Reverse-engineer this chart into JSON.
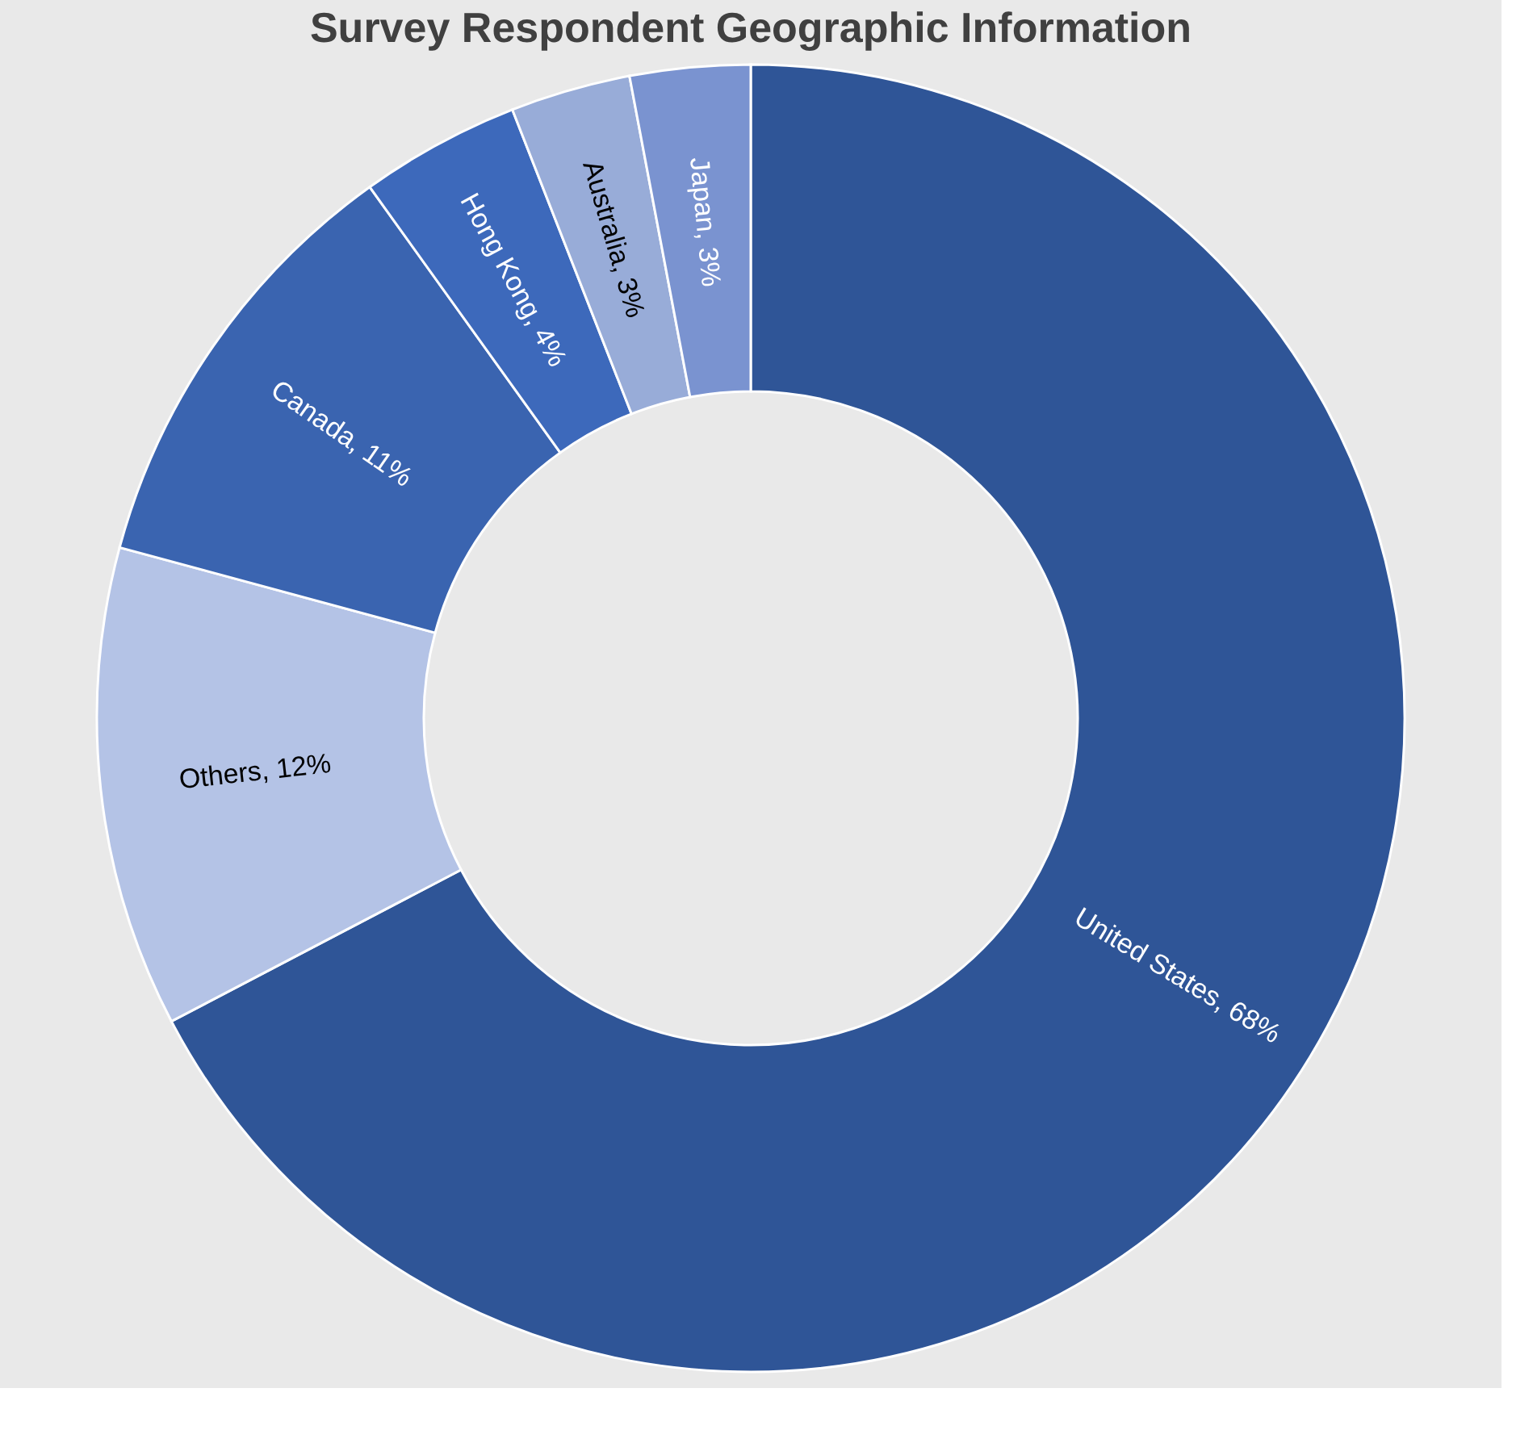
{
  "chart_data": {
    "type": "donut",
    "title": "Survey Respondent Geographic Information",
    "categories": [
      "United States",
      "Others",
      "Canada",
      "Hong Kong",
      "Australia",
      "Japan"
    ],
    "values": [
      68,
      12,
      11,
      4,
      3,
      3
    ],
    "colors": [
      "#2f5597",
      "#b4c3e6",
      "#3a64b0",
      "#3d69bb",
      "#98acd8",
      "#7a93d0"
    ],
    "value_labels": [
      "68%",
      "12%",
      "11%",
      "4%",
      "3%",
      "3%"
    ],
    "legend": false
  }
}
